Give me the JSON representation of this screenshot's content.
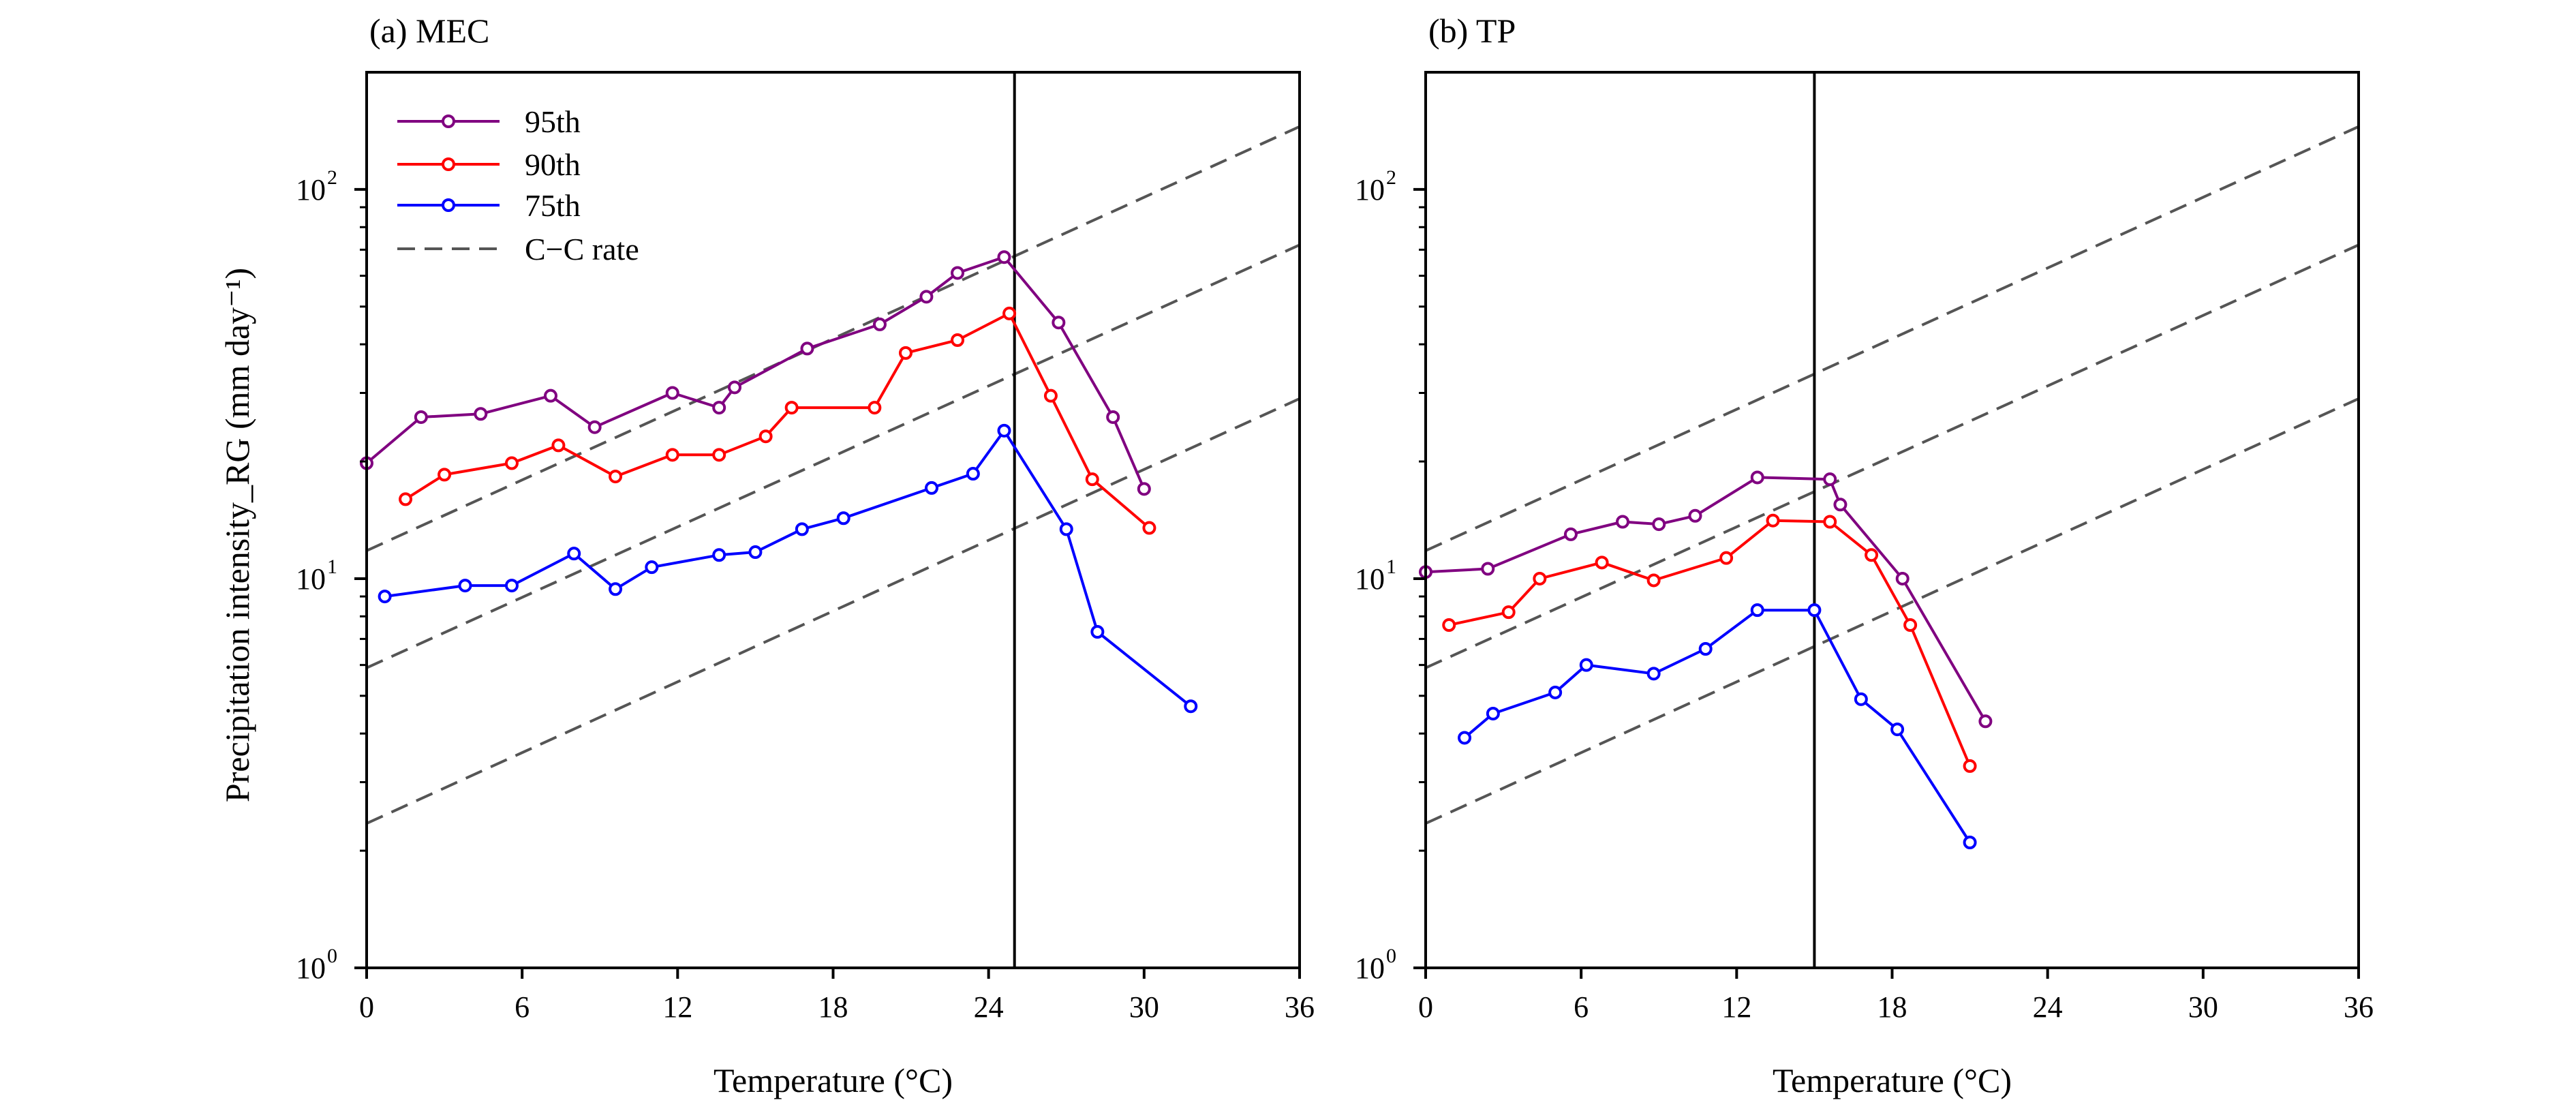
{
  "figure": {
    "ylabel": "Precipitation intensity_RG (mm day⁻¹)"
  },
  "chart_data": [
    {
      "type": "line",
      "title": "(a) MEC",
      "xlabel": "Temperature (°C)",
      "ylabel": "Precipitation intensity_RG (mm day⁻¹)",
      "xlim": [
        0,
        36
      ],
      "ylim": [
        1,
        200
      ],
      "yscale": "log",
      "xticks": [
        "0",
        "6",
        "12",
        "18",
        "24",
        "30",
        "36"
      ],
      "yticks": [
        {
          "base": "10",
          "exp": "0"
        },
        {
          "base": "10",
          "exp": "1"
        },
        {
          "base": "10",
          "exp": "2"
        }
      ],
      "vline_x": 25,
      "legend": {
        "placement": "top-left",
        "show": true
      },
      "series": [
        {
          "name": "95th",
          "color": "#800080",
          "x": [
            0,
            2.1,
            4.4,
            7.1,
            8.8,
            11.8,
            13.6,
            14.2,
            17.0,
            19.8,
            21.6,
            22.8,
            24.6,
            26.7,
            28.8,
            30.0
          ],
          "y": [
            19.8,
            26,
            26.5,
            29.5,
            24.5,
            30,
            27.5,
            31,
            39,
            45,
            53,
            61,
            67,
            45.5,
            26,
            17
          ]
        },
        {
          "name": "90th",
          "color": "#ff0000",
          "x": [
            1.5,
            3.0,
            5.6,
            7.4,
            9.6,
            11.8,
            13.6,
            15.4,
            16.4,
            19.6,
            20.8,
            22.8,
            24.8,
            26.4,
            28.0,
            30.2
          ],
          "y": [
            16,
            18.5,
            19.8,
            22,
            18.3,
            20.8,
            20.8,
            23.2,
            27.5,
            27.5,
            38,
            41,
            48,
            29.5,
            18,
            13.5
          ]
        },
        {
          "name": "75th",
          "color": "#0000ff",
          "x": [
            0.7,
            3.8,
            5.6,
            8.0,
            9.6,
            11.0,
            13.6,
            15.0,
            16.8,
            18.4,
            21.8,
            23.4,
            24.6,
            27.0,
            28.2,
            31.8
          ],
          "y": [
            9.0,
            9.6,
            9.6,
            11.6,
            9.4,
            10.7,
            11.5,
            11.7,
            13.4,
            14.3,
            17.1,
            18.6,
            24,
            13.4,
            7.3,
            4.7
          ]
        }
      ],
      "cc_lines": [
        {
          "name": "C−C rate",
          "y_at_x0": 11.8,
          "y_at_x36": 145
        },
        {
          "y_at_x0": 5.9,
          "y_at_x36": 72
        },
        {
          "y_at_x0": 2.35,
          "y_at_x36": 29
        }
      ]
    },
    {
      "type": "line",
      "title": "(b) TP",
      "xlabel": "Temperature (°C)",
      "xlim": [
        0,
        36
      ],
      "ylim": [
        1,
        200
      ],
      "yscale": "log",
      "xticks": [
        "0",
        "6",
        "12",
        "18",
        "24",
        "30",
        "36"
      ],
      "yticks": [
        {
          "base": "10",
          "exp": "0"
        },
        {
          "base": "10",
          "exp": "1"
        },
        {
          "base": "10",
          "exp": "2"
        }
      ],
      "vline_x": 15,
      "series": [
        {
          "name": "95th",
          "color": "#800080",
          "x": [
            0,
            2.4,
            5.6,
            7.6,
            9.0,
            10.4,
            12.8,
            15.6,
            16.0,
            18.4,
            21.6
          ],
          "y": [
            10.4,
            10.6,
            13,
            14,
            13.8,
            14.5,
            18.2,
            18,
            15.5,
            10,
            4.3
          ]
        },
        {
          "name": "90th",
          "color": "#ff0000",
          "x": [
            0.9,
            3.2,
            4.4,
            6.8,
            8.8,
            11.6,
            13.4,
            15.6,
            17.2,
            18.7,
            21.0
          ],
          "y": [
            7.6,
            8.2,
            10,
            11,
            9.9,
            11.3,
            14.1,
            14,
            11.5,
            7.6,
            3.3
          ]
        },
        {
          "name": "75th",
          "color": "#0000ff",
          "x": [
            1.5,
            2.6,
            5.0,
            6.2,
            8.8,
            10.8,
            12.8,
            15.0,
            16.8,
            18.2,
            21.0
          ],
          "y": [
            3.9,
            4.5,
            5.1,
            6.0,
            5.7,
            6.6,
            8.3,
            8.3,
            4.9,
            4.1,
            2.1
          ]
        }
      ],
      "cc_lines": [
        {
          "y_at_x0": 11.8,
          "y_at_x36": 145
        },
        {
          "y_at_x0": 5.9,
          "y_at_x36": 72
        },
        {
          "y_at_x0": 2.35,
          "y_at_x36": 29
        }
      ]
    }
  ]
}
